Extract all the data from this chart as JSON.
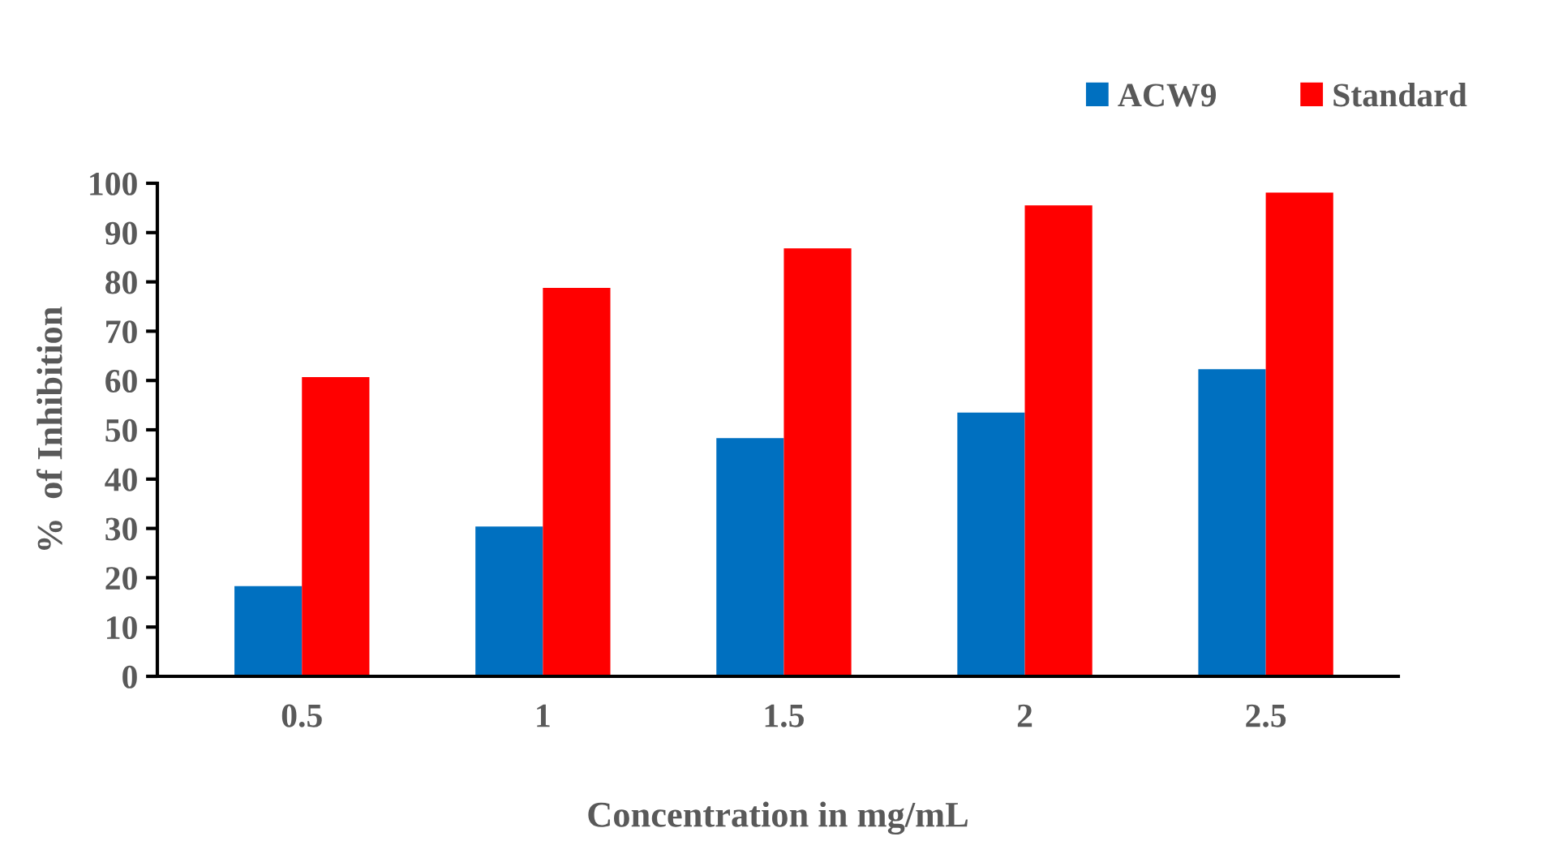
{
  "chart_data": {
    "type": "bar",
    "xlabel": "Concentration in mg/mL",
    "ylabel": "%  of Inhibition",
    "categories": [
      "0.5",
      "1",
      "1.5",
      "2",
      "2.5"
    ],
    "series": [
      {
        "name": "ACW9",
        "color": "#0070c0",
        "values": [
          18.3,
          30.4,
          48.3,
          53.5,
          62.3
        ]
      },
      {
        "name": "Standard",
        "color": "#ff0000",
        "values": [
          60.7,
          78.8,
          86.8,
          95.5,
          98.1
        ]
      }
    ],
    "ylim": [
      0,
      100
    ],
    "yticks": [
      0,
      10,
      20,
      30,
      40,
      50,
      60,
      70,
      80,
      90,
      100
    ],
    "grid": false,
    "legend": "top right"
  }
}
